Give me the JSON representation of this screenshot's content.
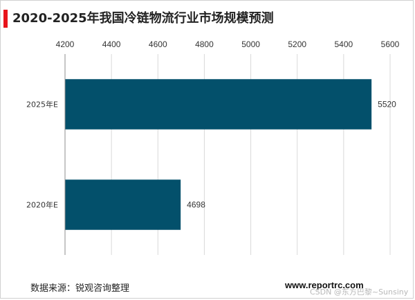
{
  "title": "2020-2025年我国冷链物流行业市场规模预测",
  "source": "数据来源：锐观咨询整理",
  "site": "www.reportrc.com",
  "watermark": "CSDN @东方巴黎~Sunsiny",
  "colors": {
    "bar": "#03506b",
    "accent": "#e8141b",
    "grid": "#d9d9d9"
  },
  "chart_data": {
    "type": "bar",
    "orientation": "horizontal",
    "categories": [
      "2025年E",
      "2020年E"
    ],
    "values": [
      5520,
      4698
    ],
    "xlim": [
      4200,
      5600
    ],
    "xticks": [
      4200,
      4400,
      4600,
      4800,
      5000,
      5200,
      5400,
      5600
    ],
    "x_axis_position": "top",
    "grid": true,
    "data_labels": true,
    "legend": "none"
  }
}
